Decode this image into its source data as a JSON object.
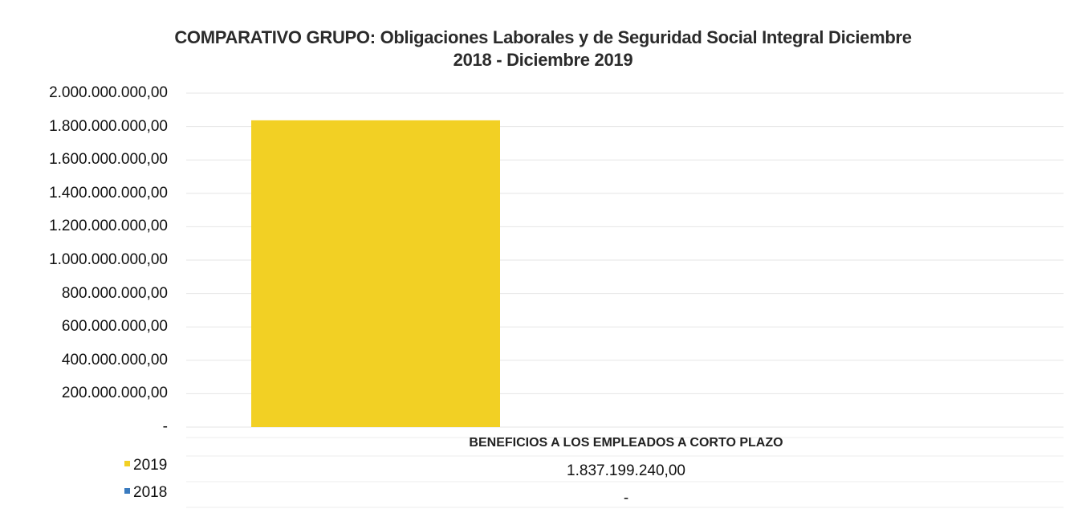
{
  "chart_data": {
    "type": "bar",
    "title_line1": "COMPARATIVO GRUPO: Obligaciones Laborales y de Seguridad Social Integral Diciembre",
    "title_line2": "2018 - Diciembre 2019",
    "categories": [
      "BENEFICIOS A LOS EMPLEADOS A CORTO PLAZO"
    ],
    "series": [
      {
        "name": "2019",
        "values": [
          1837199240.0
        ],
        "value_labels": [
          "1.837.199.240,00"
        ],
        "color": "#f2d024"
      },
      {
        "name": "2018",
        "values": [
          0
        ],
        "value_labels": [
          "-"
        ],
        "color": "#3a7bbf"
      }
    ],
    "y_ticks": [
      "-",
      "200.000.000,00",
      "400.000.000,00",
      "600.000.000,00",
      "800.000.000,00",
      "1.000.000.000,00",
      "1.200.000.000,00",
      "1.400.000.000,00",
      "1.600.000.000,00",
      "1.800.000.000,00",
      "2.000.000.000,00"
    ],
    "ylim": [
      0,
      2000000000
    ],
    "grid": true,
    "legend": "bottom-left data table"
  }
}
